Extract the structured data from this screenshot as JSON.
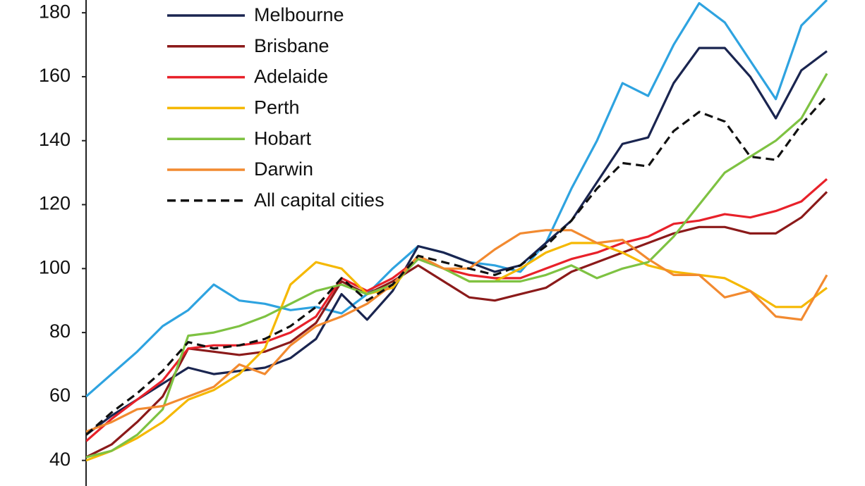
{
  "chart_data": {
    "type": "line",
    "ylim": [
      32,
      184
    ],
    "yticks": [
      40,
      60,
      80,
      100,
      120,
      140,
      160,
      180
    ],
    "series": [
      {
        "color": "#2ea3e0",
        "values": [
          60,
          67,
          74,
          82,
          87,
          95,
          90,
          89,
          87,
          88,
          86,
          92,
          100,
          107,
          105,
          102,
          101,
          99,
          108,
          125,
          140,
          158,
          154,
          170,
          183,
          177,
          165,
          153,
          176,
          184
        ]
      },
      {
        "name": "Melbourne",
        "color": "#1a2550",
        "values": [
          48,
          54,
          59,
          64,
          69,
          67,
          68,
          69,
          72,
          78,
          92,
          84,
          93,
          107,
          105,
          102,
          99,
          101,
          108,
          115,
          127,
          139,
          141,
          158,
          169,
          169,
          160,
          147,
          162,
          168
        ]
      },
      {
        "name": "Brisbane",
        "color": "#8b1a1a",
        "values": [
          41,
          45,
          52,
          60,
          75,
          74,
          73,
          74,
          77,
          83,
          96,
          92,
          96,
          101,
          96,
          91,
          90,
          92,
          94,
          99,
          102,
          105,
          108,
          111,
          113,
          113,
          111,
          111,
          116,
          124
        ]
      },
      {
        "name": "Adelaide",
        "color": "#e8212a",
        "values": [
          46,
          53,
          59,
          65,
          75,
          76,
          76,
          77,
          80,
          85,
          97,
          93,
          97,
          103,
          100,
          98,
          97,
          97,
          100,
          103,
          105,
          108,
          110,
          114,
          115,
          117,
          116,
          118,
          121,
          128
        ]
      },
      {
        "name": "Perth",
        "color": "#f5b800",
        "values": [
          40,
          43,
          47,
          52,
          59,
          62,
          67,
          75,
          95,
          102,
          100,
          92,
          94,
          104,
          100,
          96,
          96,
          100,
          105,
          108,
          108,
          105,
          101,
          99,
          98,
          97,
          93,
          88,
          88,
          94
        ]
      },
      {
        "name": "Hobart",
        "color": "#7ec242",
        "values": [
          41,
          43,
          48,
          56,
          79,
          80,
          82,
          85,
          89,
          93,
          95,
          92,
          95,
          103,
          100,
          96,
          96,
          96,
          98,
          101,
          97,
          100,
          102,
          110,
          120,
          130,
          135,
          140,
          147,
          161
        ]
      },
      {
        "name": "Darwin",
        "color": "#f28a30",
        "values": [
          49,
          52,
          56,
          57,
          60,
          63,
          70,
          67,
          76,
          82,
          85,
          89,
          95,
          104,
          100,
          100,
          106,
          111,
          112,
          112,
          108,
          109,
          103,
          98,
          98,
          91,
          93,
          85,
          84,
          98
        ]
      },
      {
        "name": "All capital cities",
        "color": "#111111",
        "dashed": true,
        "values": [
          48,
          55,
          61,
          68,
          77,
          75,
          76,
          78,
          82,
          88,
          97,
          90,
          95,
          104,
          102,
          100,
          98,
          101,
          107,
          115,
          125,
          133,
          132,
          143,
          149,
          146,
          135,
          134,
          145,
          154
        ]
      }
    ]
  }
}
